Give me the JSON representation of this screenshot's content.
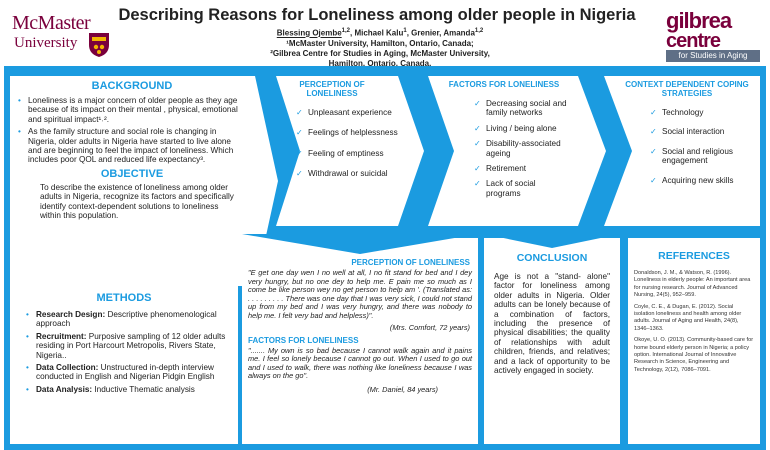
{
  "header": {
    "mcmaster_line1": "McMaster",
    "mcmaster_line2": "University",
    "title": "Describing Reasons for Loneliness among older people in Nigeria",
    "authors_main": "Blessing Ojembe",
    "authors_main_sup": "1,2",
    "authors_rest": ", Michael Kalu",
    "authors_rest_sup": "1",
    "authors_rest2": ", Grenier, Amanda",
    "authors_rest2_sup": "1,2",
    "affil1": "¹McMaster University, Hamilton, Ontario, Canada;",
    "affil2": "²Gilbrea Centre for Studies in Aging, McMaster University,",
    "affil3": "Hamilton, Ontario, Canada.",
    "gilbrea1": "gilbrea",
    "gilbrea2": "centre",
    "gilbrea3": "for Studies in Aging"
  },
  "background": {
    "heading": "BACKGROUND",
    "items": [
      "Loneliness is a major concern of older people as they age because of its impact on their mental , physical, emotional and spiritual impact¹˒².",
      "As the family structure and social role is changing in Nigeria, older adults in Nigeria have started to live alone and are beginning to feel the impact of loneliness. Which includes poor QOL and reduced life expectancy³."
    ]
  },
  "objective": {
    "heading": "OBJECTIVE",
    "text": "To describe the existence of loneliness among older adults in Nigeria, recognize its factors and specifically identify context-dependent solutions to loneliness within this population."
  },
  "perception": {
    "heading": "PERCEPTION OF LONELINESS",
    "items": [
      "Unpleasant experience",
      "Feelings of helplessness",
      "Feeling of emptiness",
      "Withdrawal or suicidal"
    ]
  },
  "factors": {
    "heading": "FACTORS FOR LONELINESS",
    "items": [
      "Decreasing social and family networks",
      "Living / being alone",
      "Disability-associated ageing",
      "Retirement",
      "Lack of social programs"
    ]
  },
  "strategies": {
    "heading": "CONTEXT DEPENDENT COPING STRATEGIES",
    "items": [
      "Technology",
      "Social interaction",
      "Social and religious engagement",
      "Acquiring new skills"
    ]
  },
  "methods": {
    "heading": "METHODS",
    "items": [
      {
        "label": "Research Design:",
        "text": " Descriptive phenomenological approach"
      },
      {
        "label": "Recruitment:",
        "text": " Purposive sampling of 12 older adults residing in Port Harcourt Metropolis, Rivers State, Nigeria.."
      },
      {
        "label": "Data Collection:",
        "text": " Unstructured in-depth interview conducted in English and Nigerian Pidgin English"
      },
      {
        "label": "Data Analysis:",
        "text": " Inductive Thematic analysis"
      }
    ]
  },
  "quotes": {
    "heading1": "PERCEPTION OF LONELINESS",
    "quote1": "\"E get one day wen I no well at all, I no fit stand for bed and I dey very hungry, but no one dey to help me. E pain me so much as I come be like person wey no get person to help am '. (Translated as: . . . . . . . . . There was one day that I was very sick, I could not stand up from my bed and I was very hungry, and there was nobody to help me. I felt very bad and helpless)\".",
    "sig1": "(Mrs. Comfort, 72 years)",
    "heading2": "FACTORS FOR LONELINESS",
    "quote2": "\"....... My own is so bad because I cannot walk again and it pains me. I feel so lonely because I cannot go out. When I used to go out and I used to walk, there was nothing like loneliness because I was always on the go\".",
    "sig2": "(Mr. Daniel, 84 years)"
  },
  "conclusion": {
    "heading": "CONCLUSION",
    "text": "Age is not a \"stand- alone\" factor for loneliness among older adults in Nigeria. Older adults can be lonely because of a combination of factors, including the presence of physical disabilities; the quality of relationships with adult children, friends, and relatives; and a lack of opportunity to be actively engaged in society."
  },
  "references": {
    "heading": "REFERENCES",
    "items": [
      "Donaldson, J. M., & Watson, R. (1996). Loneliness in elderly people: An important area for nursing research. Journal of Advanced Nursing, 24(5), 952–959.",
      "Coyle, C. E., & Dugan, E. (2012). Social isolation loneliness and health among older adults. Journal of Aging and Health, 24(8), 1346–1363.",
      "Okoye, U. O. (2013). Community-based care for home bound elderly person in Nigeria; a policy option. International Journal of Innovative Research in Science, Engineering and Technology, 2(12), 7086–7091."
    ]
  },
  "colors": {
    "accent": "#1b9be0",
    "brand": "#7a003c"
  }
}
